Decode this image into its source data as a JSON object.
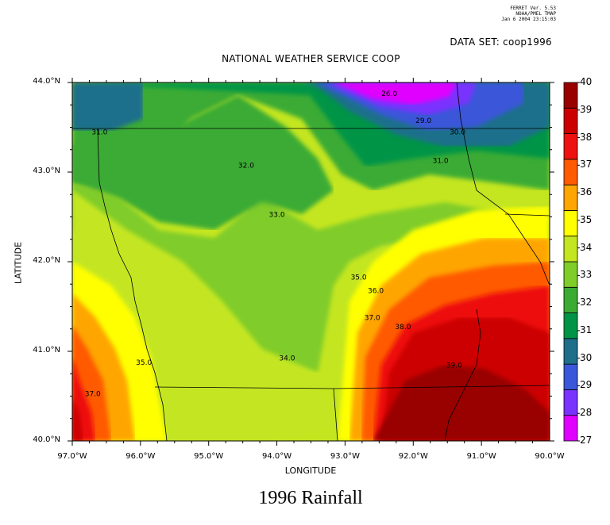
{
  "ferret_stamp": {
    "line1": "FERRET Ver. 5.53",
    "line2": "NOAA/PMEL TMAP",
    "line3": "Jan 6 2004 23:15:03"
  },
  "dataset_label": "DATA SET: coop1996",
  "plot_title": "NATIONAL WEATHER SERVICE COOP",
  "caption": "1996 Rainfall",
  "chart_data": {
    "type": "contour",
    "title": "NATIONAL WEATHER SERVICE COOP",
    "xlabel": "LONGITUDE",
    "ylabel": "LATITUDE",
    "xlim": [
      -97.0,
      -90.0
    ],
    "ylim": [
      40.0,
      44.0
    ],
    "x_ticks": [
      "97.0°W",
      "96.0°W",
      "95.0°W",
      "94.0°W",
      "93.0°W",
      "92.0°W",
      "91.0°W",
      "90.0°W"
    ],
    "y_ticks": [
      "40.0°N",
      "41.0°N",
      "42.0°N",
      "43.0°N",
      "44.0°N"
    ],
    "colorbar": {
      "levels": [
        27,
        28,
        29,
        30,
        31,
        32,
        33,
        34,
        35,
        36,
        37,
        38,
        39,
        40
      ],
      "colors": [
        "#e000ff",
        "#7a33ff",
        "#3b57d9",
        "#1f6f8b",
        "#009447",
        "#3bab34",
        "#80cc29",
        "#c4e620",
        "#ffff00",
        "#ffa500",
        "#ff5a00",
        "#ee1111",
        "#cc0000",
        "#990000"
      ]
    },
    "contour_labels": [
      {
        "text": "26.0",
        "lon": -92.35,
        "lat": 43.85
      },
      {
        "text": "29.0",
        "lon": -91.85,
        "lat": 43.55
      },
      {
        "text": "30.0",
        "lon": -91.35,
        "lat": 43.42
      },
      {
        "text": "31.0",
        "lon": -96.6,
        "lat": 43.42
      },
      {
        "text": "31.0",
        "lon": -91.6,
        "lat": 43.1
      },
      {
        "text": "32.0",
        "lon": -94.45,
        "lat": 43.05
      },
      {
        "text": "33.0",
        "lon": -94.0,
        "lat": 42.5
      },
      {
        "text": "35.0",
        "lon": -92.8,
        "lat": 41.8
      },
      {
        "text": "36.0",
        "lon": -92.55,
        "lat": 41.65
      },
      {
        "text": "37.0",
        "lon": -92.6,
        "lat": 41.35
      },
      {
        "text": "38.0",
        "lon": -92.15,
        "lat": 41.25
      },
      {
        "text": "34.0",
        "lon": -93.85,
        "lat": 40.9
      },
      {
        "text": "35.0",
        "lon": -95.95,
        "lat": 40.85
      },
      {
        "text": "37.0",
        "lon": -96.7,
        "lat": 40.5
      },
      {
        "text": "39.0",
        "lon": -91.4,
        "lat": 40.82
      }
    ]
  }
}
